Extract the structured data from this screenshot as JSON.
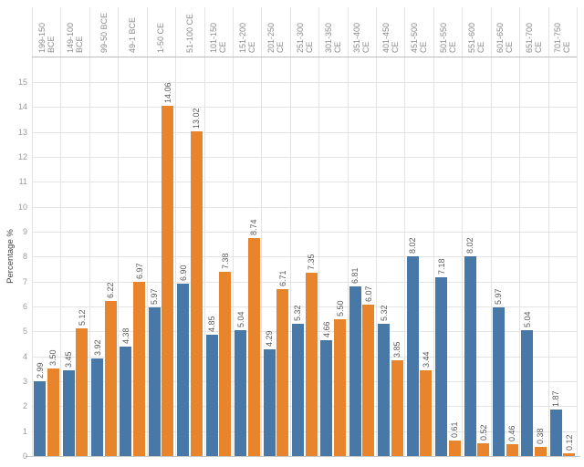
{
  "chart_data": {
    "type": "bar",
    "title": "",
    "ylabel": "Percentage %",
    "ylim": [
      0,
      15
    ],
    "ytick_interval": 1,
    "legend_position": "none",
    "grid": {
      "horizontal": true,
      "vertical": true
    },
    "bar_value_labels": true,
    "label_orientation": "vertical",
    "categories": [
      "199-150 BCE",
      "149-100 BCE",
      "99-50 BCE",
      "49-1 BCE",
      "1-50 CE",
      "51-100 CE",
      "101-150 CE",
      "151-200 CE",
      "201-250 CE",
      "251-300 CE",
      "301-350 CE",
      "351-400 CE",
      "401-450 CE",
      "451-500 CE",
      "501-550 CE",
      "551-600 CE",
      "601-650 CE",
      "651-700 CE",
      "701-750 CE"
    ],
    "series": [
      {
        "name": "blue",
        "color": "#4878A7",
        "values": [
          2.99,
          3.45,
          3.92,
          4.38,
          5.97,
          6.9,
          4.85,
          5.04,
          4.29,
          5.32,
          4.66,
          6.81,
          5.32,
          8.02,
          7.18,
          8.02,
          5.97,
          5.04,
          1.87
        ]
      },
      {
        "name": "orange",
        "color": "#E8842B",
        "values": [
          3.5,
          5.12,
          6.22,
          6.97,
          14.06,
          13.02,
          7.38,
          8.74,
          6.71,
          7.35,
          5.5,
          6.07,
          3.85,
          3.44,
          0.61,
          0.52,
          0.46,
          0.38,
          0.12
        ]
      }
    ]
  },
  "styles": {
    "background": "#ffffff",
    "grid_color": "#e4e4e4",
    "axis_line_color": "#bdbdbd",
    "bottom_line_color": "#c9c9c9",
    "value_label_color": "#595959",
    "category_label_color": "#8c8c8c",
    "ytick_color": "#9b9b9b",
    "ylabel_color": "#3f3f3f"
  }
}
